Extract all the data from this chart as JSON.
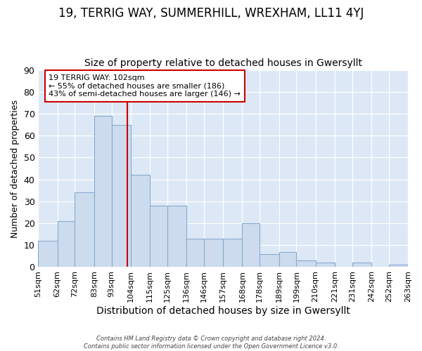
{
  "title": "19, TERRIG WAY, SUMMERHILL, WREXHAM, LL11 4YJ",
  "subtitle": "Size of property relative to detached houses in Gwersyllt",
  "xlabel": "Distribution of detached houses by size in Gwersyllt",
  "ylabel": "Number of detached properties",
  "bar_heights": [
    12,
    21,
    34,
    69,
    65,
    42,
    28,
    28,
    13,
    13,
    13,
    20,
    6,
    7,
    3,
    2,
    0,
    2,
    0,
    1
  ],
  "bin_edges": [
    51,
    62,
    72,
    83,
    93,
    104,
    115,
    125,
    136,
    146,
    157,
    168,
    178,
    189,
    199,
    210,
    221,
    231,
    242,
    252,
    263
  ],
  "xtick_labels": [
    "51sqm",
    "62sqm",
    "72sqm",
    "83sqm",
    "93sqm",
    "104sqm",
    "115sqm",
    "125sqm",
    "136sqm",
    "146sqm",
    "157sqm",
    "168sqm",
    "178sqm",
    "189sqm",
    "199sqm",
    "210sqm",
    "221sqm",
    "231sqm",
    "242sqm",
    "252sqm",
    "263sqm"
  ],
  "bar_color": "#ccdcee",
  "bar_edgecolor": "#88aacf",
  "vline_x": 102,
  "vline_color": "#cc0000",
  "annotation_text": "19 TERRIG WAY: 102sqm\n← 55% of detached houses are smaller (186)\n43% of semi-detached houses are larger (146) →",
  "annotation_box_facecolor": "#ffffff",
  "annotation_box_edgecolor": "#cc0000",
  "ylim": [
    0,
    90
  ],
  "yticks": [
    0,
    10,
    20,
    30,
    40,
    50,
    60,
    70,
    80,
    90
  ],
  "plot_bgcolor": "#dce8f5",
  "fig_bgcolor": "#ffffff",
  "grid_color": "#ffffff",
  "footer_text": "Contains HM Land Registry data © Crown copyright and database right 2024.\nContains public sector information licensed under the Open Government Licence v3.0.",
  "title_fontsize": 12,
  "subtitle_fontsize": 10,
  "ylabel_fontsize": 9,
  "xlabel_fontsize": 10
}
